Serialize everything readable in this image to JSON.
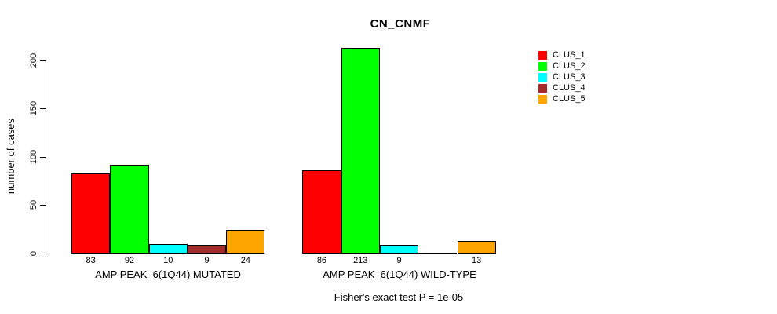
{
  "title": "CN_CNMF",
  "y_axis_title": "number of cases",
  "footer_note": "Fisher's exact test P = 1e-05",
  "legend": {
    "position": "right",
    "items": [
      {
        "label": "CLUS_1",
        "color": "#FF0000"
      },
      {
        "label": "CLUS_2",
        "color": "#00FF00"
      },
      {
        "label": "CLUS_3",
        "color": "#00FFFF"
      },
      {
        "label": "CLUS_4",
        "color": "#A52A2A"
      },
      {
        "label": "CLUS_5",
        "color": "#FFA500"
      }
    ]
  },
  "chart_data": {
    "type": "bar",
    "title": "CN_CNMF",
    "xlabel": "",
    "ylabel": "number of cases",
    "ylim": [
      0,
      213
    ],
    "yticks": [
      0,
      50,
      100,
      150,
      200
    ],
    "grid": false,
    "legend_position": "right",
    "categories": [
      "AMP PEAK  6(1Q44) MUTATED",
      "AMP PEAK  6(1Q44) WILD-TYPE"
    ],
    "series": [
      {
        "name": "CLUS_1",
        "color": "#FF0000",
        "values": [
          83,
          86
        ]
      },
      {
        "name": "CLUS_2",
        "color": "#00FF00",
        "values": [
          92,
          213
        ]
      },
      {
        "name": "CLUS_3",
        "color": "#00FFFF",
        "values": [
          10,
          9
        ]
      },
      {
        "name": "CLUS_4",
        "color": "#A52A2A",
        "values": [
          9,
          0
        ]
      },
      {
        "name": "CLUS_5",
        "color": "#FFA500",
        "values": [
          24,
          13
        ]
      }
    ],
    "bar_labels": [
      [
        "83",
        "92",
        "10",
        "9",
        "24"
      ],
      [
        "86",
        "213",
        "9",
        "",
        "13"
      ]
    ],
    "annotation": "Fisher's exact test P = 1e-05"
  }
}
